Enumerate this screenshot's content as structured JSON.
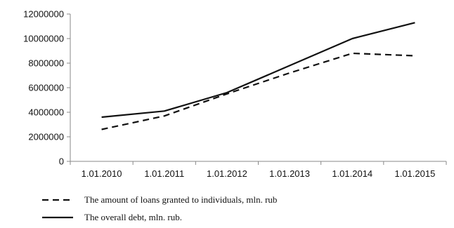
{
  "chart_data": {
    "type": "line",
    "title": "",
    "xlabel": "",
    "ylabel": "",
    "categories": [
      "1.01.2010",
      "1.01.2011",
      "1.01.2012",
      "1.01.2013",
      "1.01.2014",
      "1.01.2015"
    ],
    "ylim": [
      0,
      12000000
    ],
    "yticks": [
      "0",
      "2000000",
      "4000000",
      "6000000",
      "8000000",
      "10000000",
      "12000000"
    ],
    "grid": false,
    "legend_position": "bottom-left",
    "series": [
      {
        "name": "The amount of loans granted to individuals, mln. rub",
        "style": "dashed",
        "color": "#111111",
        "values": [
          2600000,
          3700000,
          5500000,
          7200000,
          8800000,
          8600000
        ]
      },
      {
        "name": "The overall debt, mln. rub.",
        "style": "solid",
        "color": "#111111",
        "values": [
          3600000,
          4100000,
          5600000,
          7800000,
          10000000,
          11300000
        ]
      }
    ]
  }
}
